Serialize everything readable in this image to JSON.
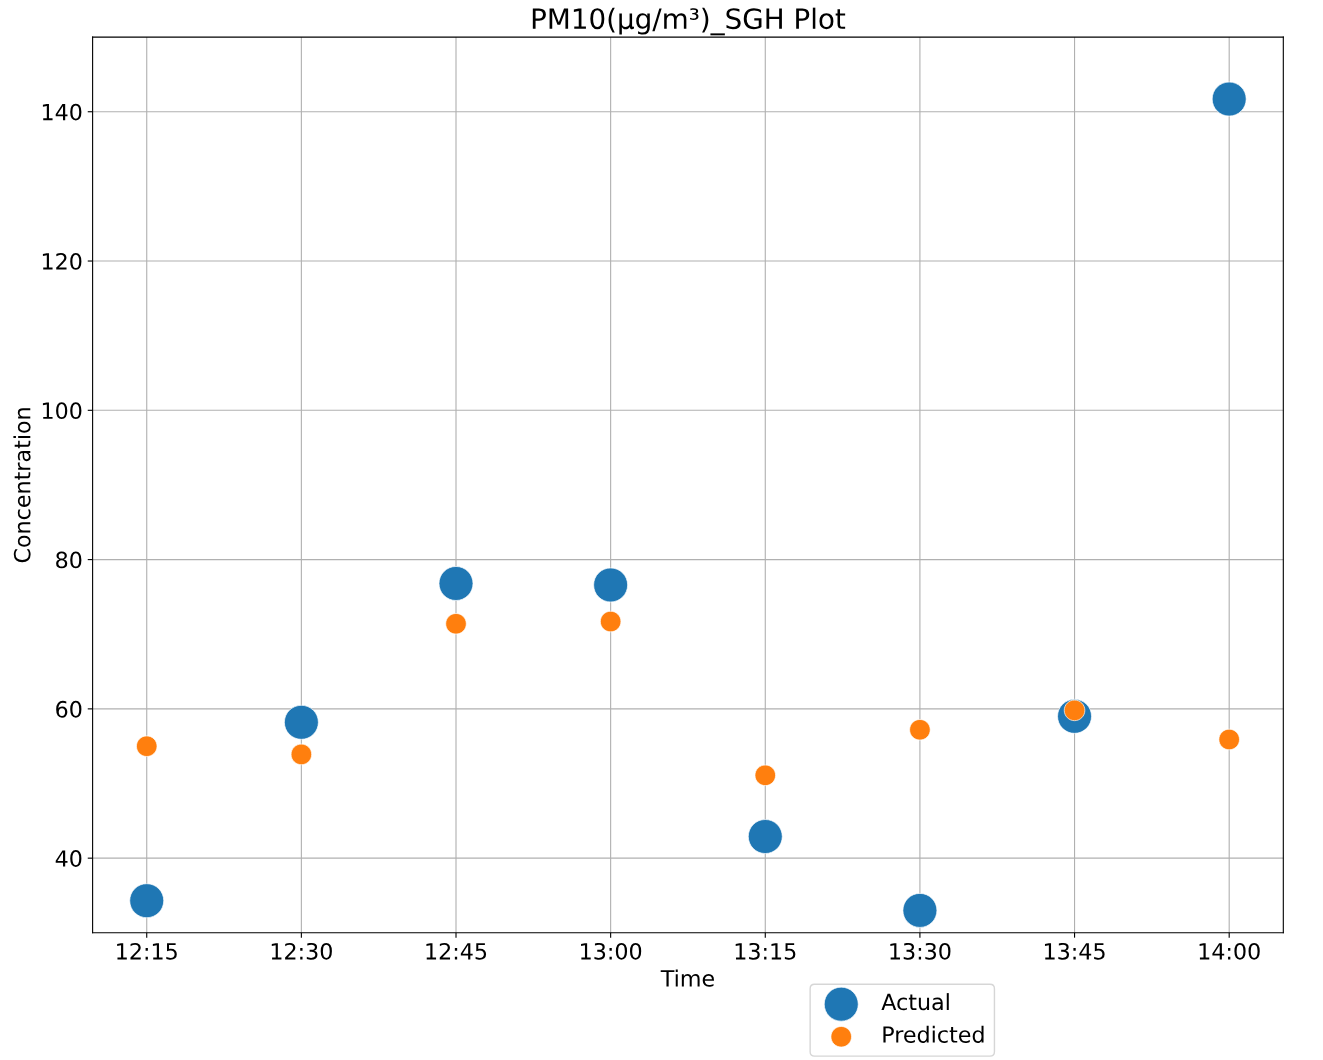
{
  "chart_data": {
    "type": "scatter",
    "title": "PM10(μg/m³)_SGH Plot",
    "xlabel": "Time",
    "ylabel": "Concentration",
    "x": [
      12.25,
      12.5,
      12.75,
      13.0,
      13.25,
      13.5,
      13.75,
      14.0
    ],
    "series": [
      {
        "name": "Actual",
        "color": "#1f77b4",
        "values": [
          34.3,
          58.2,
          76.8,
          76.6,
          42.9,
          33.0,
          59.0,
          141.7
        ]
      },
      {
        "name": "Predicted",
        "color": "#ff7f0e",
        "values": [
          55.0,
          53.9,
          71.4,
          71.7,
          51.1,
          57.2,
          59.8,
          55.9
        ]
      }
    ],
    "xlim": [
      12.1625,
      14.0875
    ],
    "xticks": [
      {
        "value": 12.25,
        "label": "12:15"
      },
      {
        "value": 12.5,
        "label": "12:30"
      },
      {
        "value": 12.75,
        "label": "12:45"
      },
      {
        "value": 13.0,
        "label": "13:00"
      },
      {
        "value": 13.25,
        "label": "13:15"
      },
      {
        "value": 13.5,
        "label": "13:30"
      },
      {
        "value": 13.75,
        "label": "13:45"
      },
      {
        "value": 14.0,
        "label": "14:00"
      }
    ],
    "ylim": [
      30,
      150
    ],
    "yticks": [
      40,
      60,
      80,
      100,
      120,
      140
    ],
    "grid": true,
    "legend": "bottom",
    "marker": "circle"
  }
}
